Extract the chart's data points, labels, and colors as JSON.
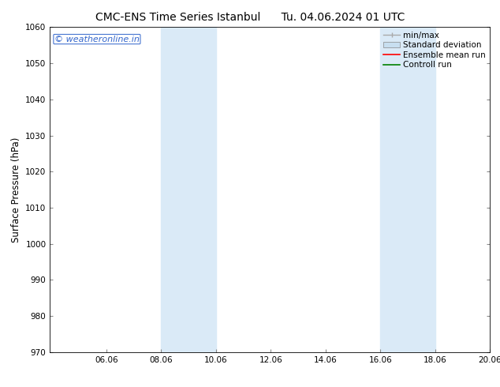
{
  "title_left": "CMC-ENS Time Series Istanbul",
  "title_right": "Tu. 04.06.2024 01 UTC",
  "ylabel": "Surface Pressure (hPa)",
  "ylim": [
    970,
    1060
  ],
  "yticks": [
    970,
    980,
    990,
    1000,
    1010,
    1020,
    1030,
    1040,
    1050,
    1060
  ],
  "xlim": [
    4.0,
    20.06
  ],
  "xticks": [
    6.06,
    8.06,
    10.06,
    12.06,
    14.06,
    16.06,
    18.06,
    20.06
  ],
  "xlabel_labels": [
    "06.06",
    "08.06",
    "10.06",
    "12.06",
    "14.06",
    "16.06",
    "18.06",
    "20.06"
  ],
  "shaded_bands": [
    {
      "xmin": 8.06,
      "xmax": 10.06
    },
    {
      "xmin": 16.06,
      "xmax": 18.06
    }
  ],
  "shaded_color": "#daeaf7",
  "watermark_text": "© weatheronline.in",
  "watermark_color": "#3366cc",
  "watermark_fontsize": 8,
  "bg_color": "#ffffff",
  "legend_items": [
    {
      "label": "min/max",
      "color": "#aaaaaa",
      "lw": 1.0
    },
    {
      "label": "Standard deviation",
      "color": "#c8dff0",
      "lw": 6
    },
    {
      "label": "Ensemble mean run",
      "color": "#ff0000",
      "lw": 1.2
    },
    {
      "label": "Controll run",
      "color": "#008000",
      "lw": 1.2
    }
  ],
  "title_fontsize": 10,
  "tick_fontsize": 7.5,
  "ylabel_fontsize": 8.5,
  "legend_fontsize": 7.5
}
